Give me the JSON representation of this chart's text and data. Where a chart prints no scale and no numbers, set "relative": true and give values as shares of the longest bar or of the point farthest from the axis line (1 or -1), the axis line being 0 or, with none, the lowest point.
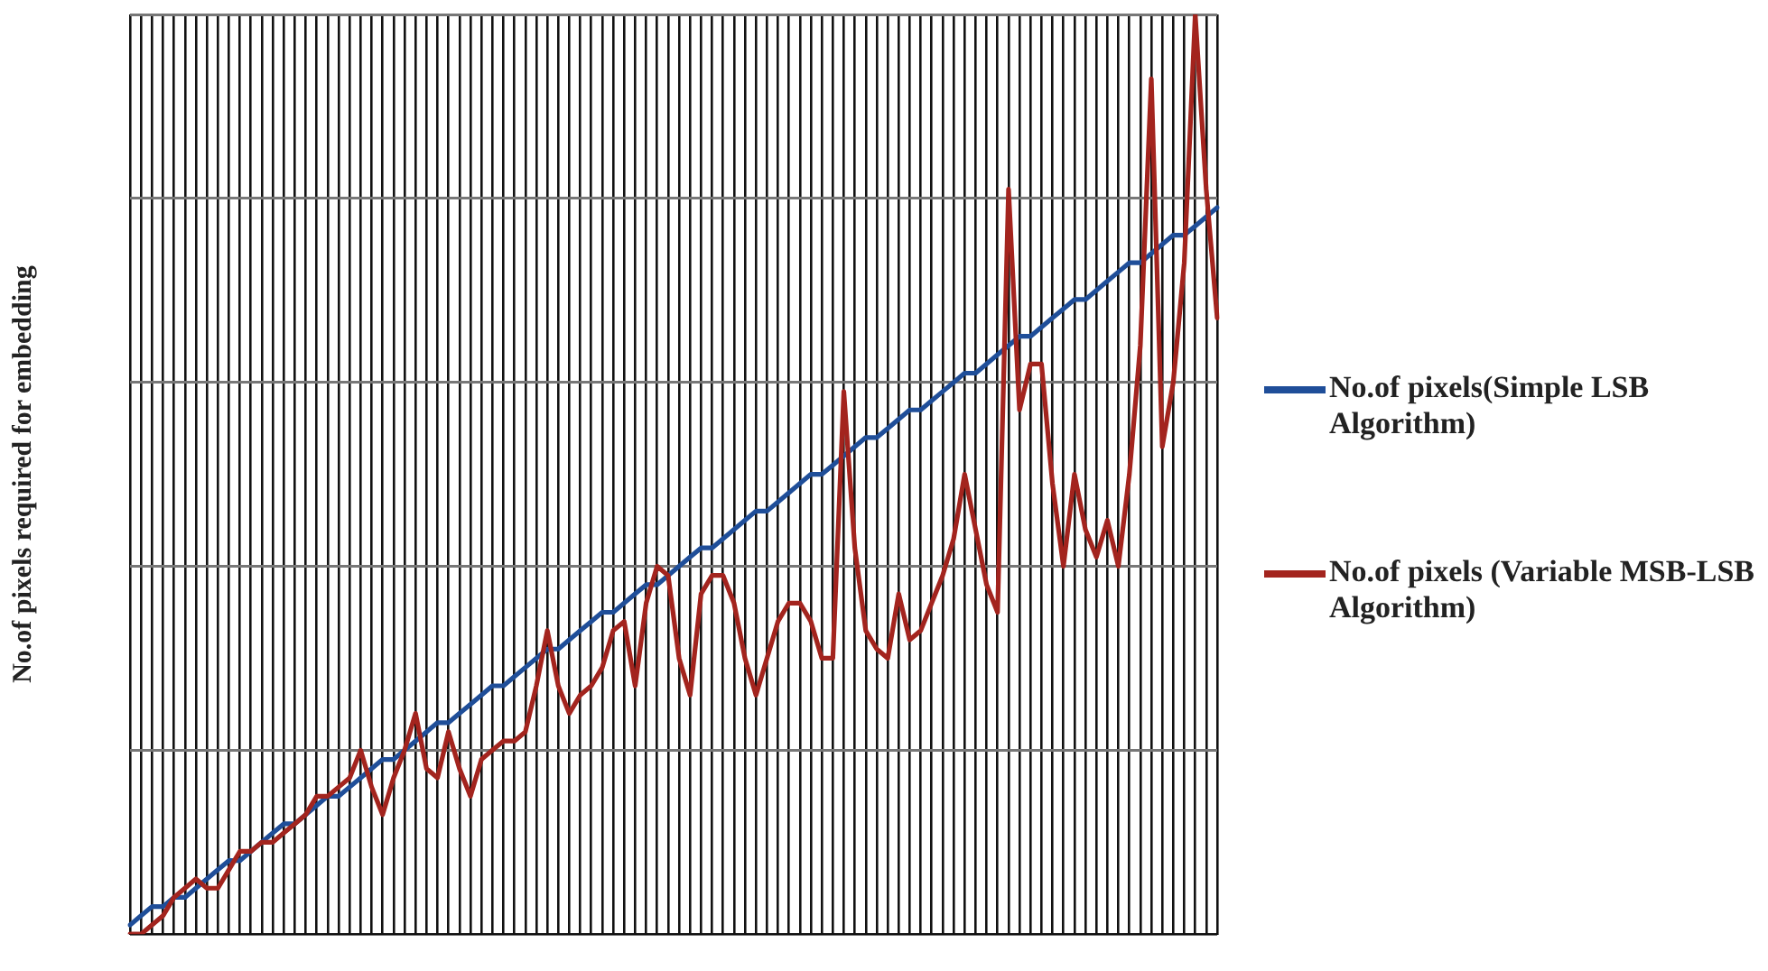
{
  "chart_data": {
    "type": "line",
    "ylabel": "No.of pixels required for embedding",
    "relative": true,
    "grid": true,
    "legend": "right",
    "marker": "none",
    "line_style": "solid",
    "categories": [
      null,
      null,
      null,
      null,
      null,
      null,
      null,
      null,
      null,
      null,
      null,
      null,
      null,
      null,
      null,
      null,
      null,
      null,
      null,
      null,
      null,
      null,
      null,
      null,
      null,
      null,
      null,
      null,
      null,
      null,
      null,
      null,
      null,
      null,
      null,
      null,
      null,
      null,
      null,
      null,
      null,
      null,
      null,
      null,
      null,
      null,
      null,
      null,
      null,
      null,
      null,
      null,
      null,
      null,
      null,
      null,
      null,
      null,
      null,
      null,
      null,
      null,
      null,
      null,
      null,
      null,
      null,
      null,
      null,
      null,
      null,
      null,
      null,
      null,
      null,
      null,
      null,
      null,
      null,
      null,
      null,
      null,
      null,
      null,
      null,
      null,
      null,
      null,
      null,
      null,
      null,
      null,
      null,
      null,
      null,
      null,
      null,
      null,
      null,
      null
    ],
    "series": [
      {
        "name": "No.of pixels(Simple LSB Algorithm)",
        "color": "#1f4e99",
        "values": [
          0.01,
          0.02,
          0.03,
          0.03,
          0.04,
          0.04,
          0.05,
          0.06,
          0.07,
          0.08,
          0.08,
          0.09,
          0.1,
          0.11,
          0.12,
          0.12,
          0.13,
          0.14,
          0.15,
          0.15,
          0.16,
          0.17,
          0.18,
          0.19,
          0.19,
          0.2,
          0.21,
          0.22,
          0.23,
          0.23,
          0.24,
          0.25,
          0.26,
          0.27,
          0.27,
          0.28,
          0.29,
          0.3,
          0.31,
          0.31,
          0.32,
          0.33,
          0.34,
          0.35,
          0.35,
          0.36,
          0.37,
          0.38,
          0.38,
          0.39,
          0.4,
          0.41,
          0.42,
          0.42,
          0.43,
          0.44,
          0.45,
          0.46,
          0.46,
          0.47,
          0.48,
          0.49,
          0.5,
          0.5,
          0.51,
          0.52,
          0.53,
          0.54,
          0.54,
          0.55,
          0.56,
          0.57,
          0.57,
          0.58,
          0.59,
          0.6,
          0.61,
          0.61,
          0.62,
          0.63,
          0.64,
          0.65,
          0.65,
          0.66,
          0.67,
          0.68,
          0.69,
          0.69,
          0.7,
          0.71,
          0.72,
          0.73,
          0.73,
          0.74,
          0.75,
          0.76,
          0.76,
          0.77,
          0.78,
          0.79
        ]
      },
      {
        "name": "No.of pixels (Variable MSB-LSB Algorithm)",
        "color": "#a3241e",
        "values": [
          0.0,
          0.0,
          0.01,
          0.02,
          0.04,
          0.05,
          0.06,
          0.05,
          0.05,
          0.07,
          0.09,
          0.09,
          0.1,
          0.1,
          0.11,
          0.12,
          0.13,
          0.15,
          0.15,
          0.16,
          0.17,
          0.2,
          0.16,
          0.13,
          0.17,
          0.2,
          0.24,
          0.18,
          0.17,
          0.22,
          0.18,
          0.15,
          0.19,
          0.2,
          0.21,
          0.21,
          0.22,
          0.27,
          0.33,
          0.27,
          0.24,
          0.26,
          0.27,
          0.29,
          0.33,
          0.34,
          0.27,
          0.36,
          0.4,
          0.39,
          0.3,
          0.26,
          0.37,
          0.39,
          0.39,
          0.36,
          0.3,
          0.26,
          0.3,
          0.34,
          0.36,
          0.36,
          0.34,
          0.3,
          0.3,
          0.59,
          0.42,
          0.33,
          0.31,
          0.3,
          0.37,
          0.32,
          0.33,
          0.36,
          0.39,
          0.43,
          0.5,
          0.44,
          0.38,
          0.35,
          0.81,
          0.57,
          0.62,
          0.62,
          0.49,
          0.4,
          0.5,
          0.44,
          0.41,
          0.45,
          0.4,
          0.5,
          0.64,
          0.93,
          0.53,
          0.6,
          0.73,
          1.0,
          0.81,
          0.67
        ]
      }
    ]
  }
}
